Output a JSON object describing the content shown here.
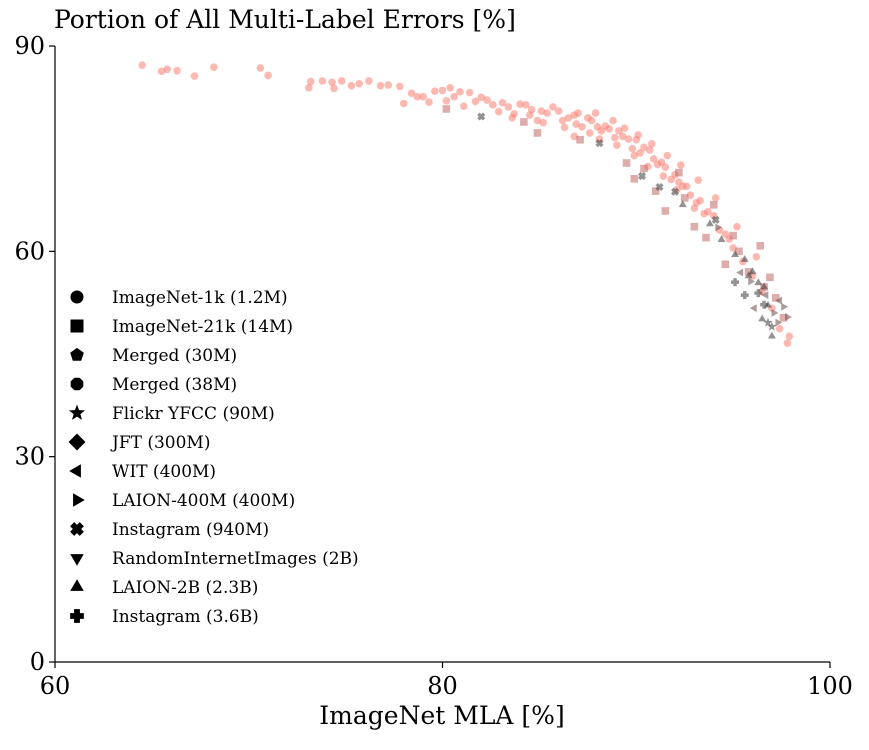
{
  "chart_data": {
    "type": "scatter",
    "title": "Portion of All Multi-Label Errors [%]",
    "xlabel": "ImageNet MLA [%]",
    "ylabel": "",
    "xlim": [
      60,
      100
    ],
    "ylim": [
      0,
      90
    ],
    "xticks": [
      "60",
      "80",
      "100"
    ],
    "yticks": [
      "0",
      "30",
      "60",
      "90"
    ],
    "grid": false,
    "legend_placement": "left",
    "colors": {
      "highlight": "#fa8072",
      "other": "#3a3a3a",
      "mid": "#c06a66"
    },
    "legend": [
      {
        "label": "ImageNet-1k (1.2M)",
        "marker": "circle"
      },
      {
        "label": "ImageNet-21k (14M)",
        "marker": "square"
      },
      {
        "label": "Merged (30M)",
        "marker": "pentagon"
      },
      {
        "label": "Merged (38M)",
        "marker": "octagon"
      },
      {
        "label": "Flickr YFCC (90M)",
        "marker": "star"
      },
      {
        "label": "JFT (300M)",
        "marker": "diamond"
      },
      {
        "label": "WIT (400M)",
        "marker": "triangle-left"
      },
      {
        "label": "LAION-400M (400M)",
        "marker": "triangle-right"
      },
      {
        "label": "Instagram (940M)",
        "marker": "x"
      },
      {
        "label": "RandomInternetImages (2B)",
        "marker": "triangle-down"
      },
      {
        "label": "LAION-2B (2.3B)",
        "marker": "triangle-up"
      },
      {
        "label": "Instagram (3.6B)",
        "marker": "plus"
      }
    ],
    "series": [
      {
        "marker": "circle",
        "color": "#fa8072",
        "points": [
          [
            64.5,
            87.2
          ],
          [
            65.5,
            86.3
          ],
          [
            65.8,
            86.6
          ],
          [
            66.3,
            86.4
          ],
          [
            67.2,
            85.6
          ],
          [
            68.2,
            86.9
          ],
          [
            70.6,
            86.8
          ],
          [
            71.0,
            85.7
          ],
          [
            73.1,
            83.9
          ],
          [
            73.2,
            84.8
          ],
          [
            73.8,
            84.9
          ],
          [
            74.3,
            84.7
          ],
          [
            74.4,
            83.8
          ],
          [
            74.8,
            84.9
          ],
          [
            75.3,
            84.2
          ],
          [
            75.7,
            84.5
          ],
          [
            76.2,
            84.9
          ],
          [
            76.8,
            84.2
          ],
          [
            77.2,
            84.3
          ],
          [
            77.8,
            84.1
          ],
          [
            78.0,
            81.6
          ],
          [
            78.4,
            83.1
          ],
          [
            78.7,
            82.6
          ],
          [
            79.0,
            82.6
          ],
          [
            79.3,
            81.8
          ],
          [
            79.6,
            83.4
          ],
          [
            80.0,
            83.5
          ],
          [
            80.2,
            82.0
          ],
          [
            80.4,
            83.9
          ],
          [
            80.6,
            82.6
          ],
          [
            80.9,
            83.3
          ],
          [
            81.1,
            81.2
          ],
          [
            81.4,
            83.2
          ],
          [
            81.7,
            81.9
          ],
          [
            82.0,
            82.5
          ],
          [
            82.3,
            82.1
          ],
          [
            82.6,
            81.4
          ],
          [
            82.9,
            80.4
          ],
          [
            83.1,
            81.7
          ],
          [
            83.4,
            81.1
          ],
          [
            83.7,
            80.1
          ],
          [
            84.0,
            81.5
          ],
          [
            84.3,
            81.4
          ],
          [
            84.6,
            80.7
          ],
          [
            84.9,
            79.1
          ],
          [
            85.1,
            80.5
          ],
          [
            85.4,
            80.2
          ],
          [
            85.7,
            81.1
          ],
          [
            86.0,
            80.5
          ],
          [
            86.2,
            79.1
          ],
          [
            86.5,
            79.5
          ],
          [
            86.8,
            79.9
          ],
          [
            87.0,
            80.2
          ],
          [
            87.2,
            78.2
          ],
          [
            87.5,
            79.5
          ],
          [
            87.7,
            79.1
          ],
          [
            88.0,
            78.2
          ],
          [
            88.2,
            77.6
          ],
          [
            88.4,
            78.3
          ],
          [
            88.6,
            77.9
          ],
          [
            88.9,
            76.6
          ],
          [
            89.1,
            77.6
          ],
          [
            89.3,
            76.8
          ],
          [
            89.6,
            76.4
          ],
          [
            89.8,
            75.0
          ],
          [
            90.0,
            76.3
          ],
          [
            90.2,
            74.4
          ],
          [
            90.4,
            75.2
          ],
          [
            90.7,
            74.8
          ],
          [
            90.9,
            73.5
          ],
          [
            91.1,
            72.7
          ],
          [
            91.3,
            73.0
          ],
          [
            91.5,
            72.3
          ],
          [
            91.8,
            70.5
          ],
          [
            92.0,
            71.2
          ],
          [
            92.2,
            70.1
          ],
          [
            92.4,
            69.5
          ],
          [
            92.6,
            69.5
          ],
          [
            92.8,
            68.2
          ],
          [
            93.1,
            67.1
          ],
          [
            93.3,
            67.4
          ],
          [
            93.5,
            65.5
          ],
          [
            93.7,
            65.8
          ],
          [
            94.0,
            65.2
          ],
          [
            94.3,
            63.1
          ],
          [
            94.6,
            62.5
          ],
          [
            95.0,
            60.5
          ],
          [
            95.5,
            58.5
          ],
          [
            96.0,
            56.4
          ],
          [
            96.5,
            54.1
          ],
          [
            97.0,
            51.7
          ],
          [
            97.4,
            48.7
          ],
          [
            97.8,
            46.6
          ],
          [
            97.9,
            47.6
          ],
          [
            86.8,
            76.8
          ],
          [
            87.6,
            77.3
          ],
          [
            88.1,
            76.4
          ],
          [
            89.0,
            75.5
          ],
          [
            89.9,
            74.0
          ],
          [
            90.6,
            72.4
          ],
          [
            91.4,
            71.0
          ],
          [
            92.1,
            69.0
          ],
          [
            93.0,
            66.3
          ],
          [
            94.8,
            61.8
          ],
          [
            85.2,
            78.8
          ],
          [
            86.3,
            78.1
          ],
          [
            87.9,
            80.2
          ],
          [
            88.8,
            79.1
          ],
          [
            89.4,
            78.0
          ],
          [
            90.1,
            77.0
          ],
          [
            90.8,
            75.7
          ],
          [
            91.6,
            74.0
          ],
          [
            92.3,
            72.6
          ],
          [
            93.2,
            70.4
          ],
          [
            94.1,
            67.8
          ],
          [
            95.2,
            63.6
          ],
          [
            96.2,
            59.2
          ],
          [
            83.6,
            79.5
          ],
          [
            84.5,
            79.9
          ],
          [
            86.9,
            78.6
          ]
        ]
      },
      {
        "marker": "square",
        "color": "#c06a66",
        "points": [
          [
            80.2,
            80.8
          ],
          [
            84.2,
            78.9
          ],
          [
            84.9,
            77.3
          ],
          [
            87.1,
            76.3
          ],
          [
            89.5,
            72.9
          ],
          [
            89.9,
            70.6
          ],
          [
            90.4,
            72.1
          ],
          [
            91.0,
            68.8
          ],
          [
            91.5,
            65.9
          ],
          [
            92.5,
            67.8
          ],
          [
            93.0,
            63.6
          ],
          [
            93.6,
            62.0
          ],
          [
            94.0,
            66.8
          ],
          [
            94.6,
            58.1
          ],
          [
            95.0,
            62.3
          ],
          [
            95.8,
            57.0
          ],
          [
            96.4,
            60.8
          ],
          [
            96.9,
            56.2
          ],
          [
            97.2,
            53.2
          ],
          [
            97.6,
            50.3
          ],
          [
            92.2,
            71.5
          ],
          [
            95.3,
            60.0
          ],
          [
            96.6,
            54.8
          ]
        ]
      },
      {
        "marker": "triangle-up",
        "color": "#3a3a3a",
        "points": [
          [
            92.4,
            66.8
          ],
          [
            93.8,
            64.0
          ],
          [
            94.4,
            61.7
          ],
          [
            95.1,
            59.5
          ],
          [
            95.6,
            58.8
          ],
          [
            96.0,
            57.0
          ],
          [
            96.3,
            55.4
          ],
          [
            96.6,
            54.8
          ],
          [
            96.8,
            52.1
          ],
          [
            97.0,
            47.6
          ],
          [
            96.5,
            50.1
          ],
          [
            95.8,
            56.4
          ]
        ]
      },
      {
        "marker": "triangle-right",
        "color": "#6a4a4a",
        "points": [
          [
            94.2,
            63.5
          ],
          [
            95.9,
            55.6
          ],
          [
            97.1,
            51.0
          ],
          [
            97.3,
            49.6
          ],
          [
            97.6,
            51.9
          ],
          [
            97.8,
            50.4
          ]
        ]
      },
      {
        "marker": "triangle-left",
        "color": "#6a4a4a",
        "points": [
          [
            95.4,
            56.9
          ],
          [
            96.1,
            51.7
          ],
          [
            96.7,
            53.6
          ],
          [
            97.4,
            52.8
          ]
        ]
      },
      {
        "marker": "plus",
        "color": "#3a3a3a",
        "points": [
          [
            95.1,
            55.5
          ],
          [
            95.6,
            53.6
          ],
          [
            96.3,
            53.9
          ],
          [
            96.6,
            52.2
          ]
        ]
      },
      {
        "marker": "x",
        "color": "#3a3a3a",
        "points": [
          [
            82.0,
            79.7
          ],
          [
            88.1,
            75.8
          ],
          [
            90.3,
            71.0
          ],
          [
            91.2,
            69.4
          ],
          [
            92.0,
            68.7
          ],
          [
            94.1,
            64.6
          ]
        ]
      },
      {
        "marker": "star",
        "color": "#3a3a3a",
        "points": [
          [
            96.8,
            49.6
          ],
          [
            97.0,
            49.0
          ]
        ]
      }
    ]
  }
}
